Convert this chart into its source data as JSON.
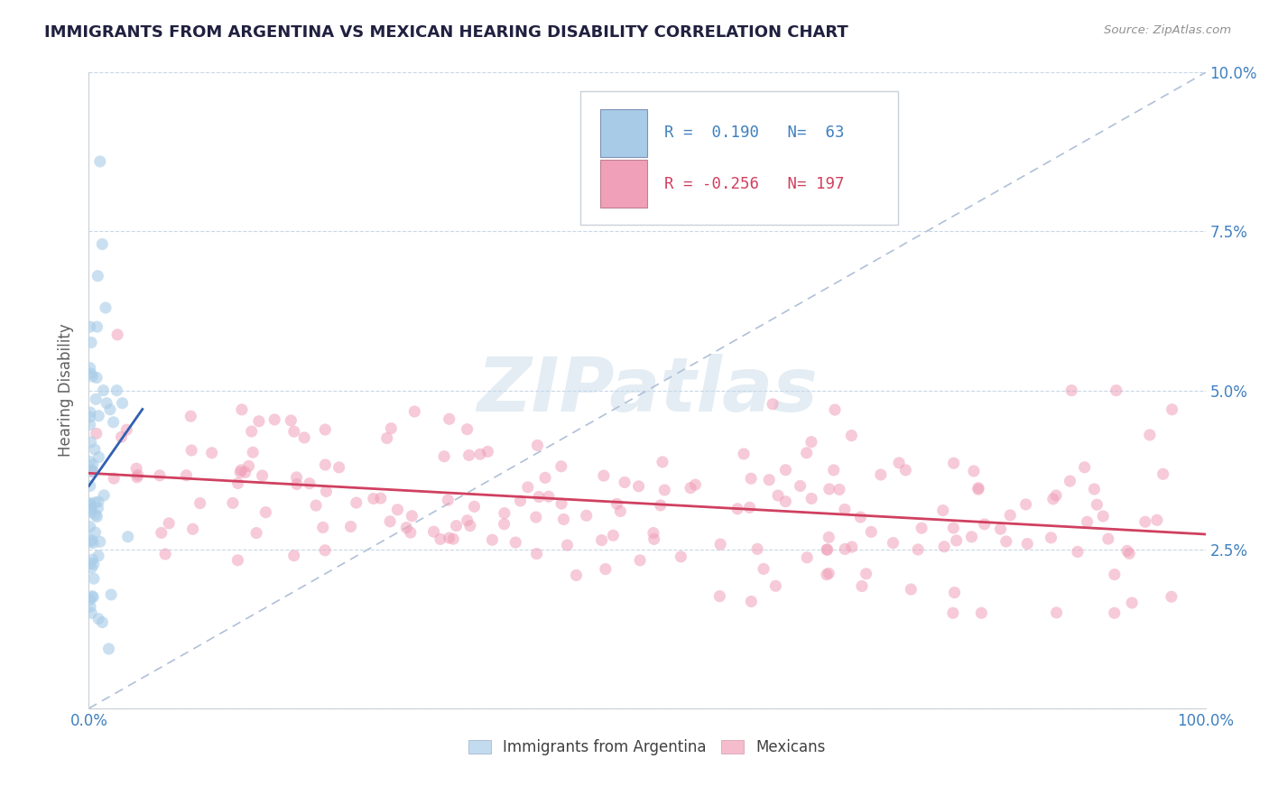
{
  "title": "IMMIGRANTS FROM ARGENTINA VS MEXICAN HEARING DISABILITY CORRELATION CHART",
  "source": "Source: ZipAtlas.com",
  "ylabel": "Hearing Disability",
  "watermark": "ZIPatlas",
  "argentina_R": 0.19,
  "argentina_N": 63,
  "mexican_R": -0.256,
  "mexican_N": 197,
  "xlim": [
    0.0,
    1.0
  ],
  "ylim": [
    0.0,
    0.1
  ],
  "ytick_vals": [
    0.0,
    0.025,
    0.05,
    0.075,
    0.1
  ],
  "ytick_labels_left": [
    "",
    "",
    "",
    "",
    ""
  ],
  "ytick_labels_right": [
    "",
    "2.5%",
    "5.0%",
    "7.5%",
    "10.0%"
  ],
  "xtick_vals": [
    0.0,
    0.1,
    0.2,
    0.3,
    0.4,
    0.5,
    0.6,
    0.7,
    0.8,
    0.9,
    1.0
  ],
  "xtick_labels": [
    "0.0%",
    "",
    "",
    "",
    "",
    "",
    "",
    "",
    "",
    "",
    "100.0%"
  ],
  "argentina_color": "#a8cce8",
  "mexican_color": "#f0a0b8",
  "argentina_line_color": "#3060b0",
  "mexican_line_color": "#d04060",
  "diagonal_line_color": "#b0c0d8",
  "background_color": "#ffffff",
  "grid_color": "#c8d8e8",
  "title_color": "#202040",
  "axis_label_color": "#606060",
  "tick_color_x": "#4080c0",
  "tick_color_y": "#4080c0",
  "legend_box_color": "#f0f4f8",
  "legend_border_color": "#c8d0d8"
}
